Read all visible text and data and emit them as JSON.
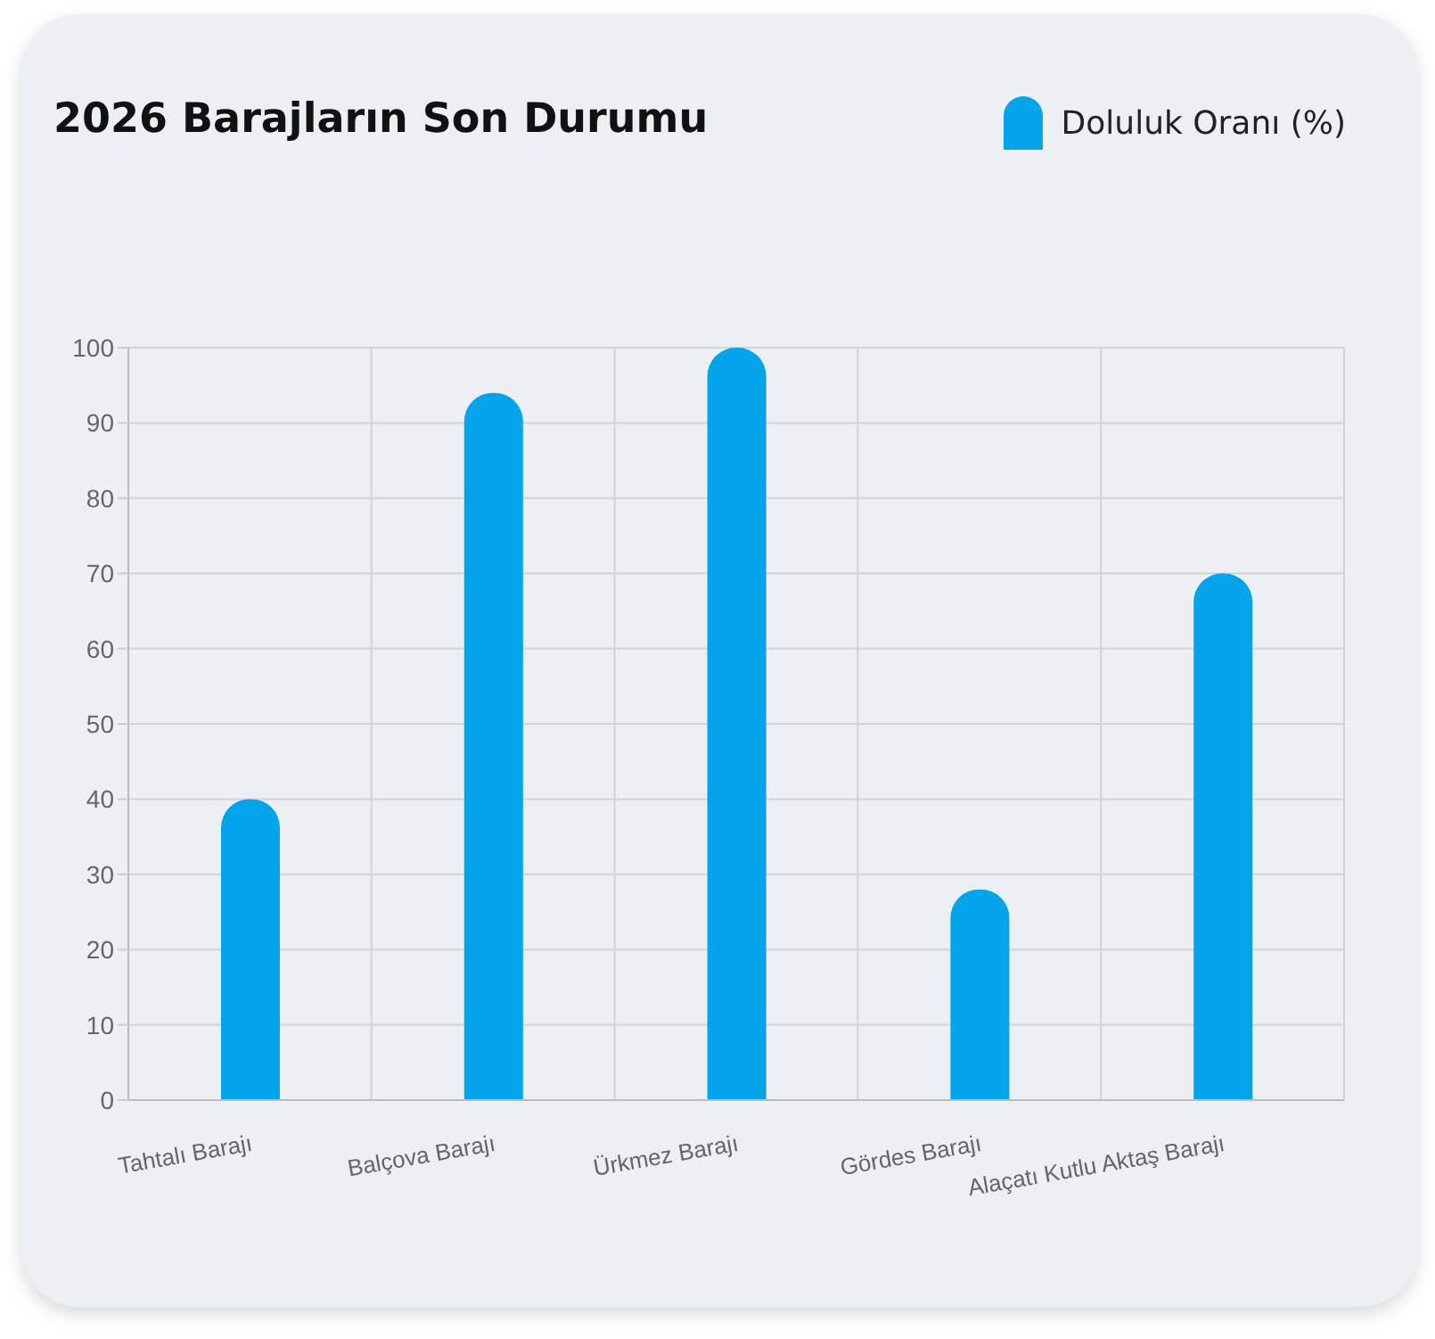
{
  "chart_data": {
    "type": "bar",
    "title": "2026 Barajların Son Durumu",
    "categories": [
      "Tahtalı Barajı",
      "Balçova Barajı",
      "Ürkmez Barajı",
      "Gördes Barajı",
      "Alaçatı Kutlu Aktaş Barajı"
    ],
    "series": [
      {
        "name": "Doluluk Oranı (%)",
        "color": "#03a4ea",
        "values": [
          40,
          94,
          100,
          28,
          70
        ]
      }
    ],
    "ylim": [
      0,
      100
    ],
    "yticks": [
      0,
      10,
      20,
      30,
      40,
      50,
      60,
      70,
      80,
      90,
      100
    ],
    "grid": true,
    "legend": "top right"
  }
}
